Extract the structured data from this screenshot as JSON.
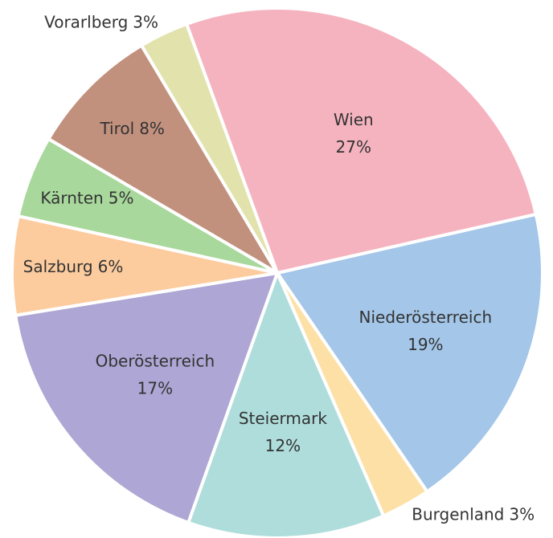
{
  "chart_data": {
    "type": "pie",
    "categories": [
      "Wien",
      "Niederösterreich",
      "Burgenland",
      "Steiermark",
      "Oberösterreich",
      "Salzburg",
      "Kärnten",
      "Tirol",
      "Vorarlberg"
    ],
    "values": [
      27,
      19,
      3,
      12,
      17,
      6,
      5,
      8,
      3
    ],
    "value_labels": [
      "27%",
      "19%",
      "3%",
      "12%",
      "17%",
      "6%",
      "5%",
      "8%",
      "3%"
    ],
    "colors": [
      "#f5b3bf",
      "#a4c6e8",
      "#fde0a6",
      "#aedddb",
      "#aea6d4",
      "#fccb9e",
      "#a8d89c",
      "#c2917e",
      "#e2e2ad"
    ]
  }
}
